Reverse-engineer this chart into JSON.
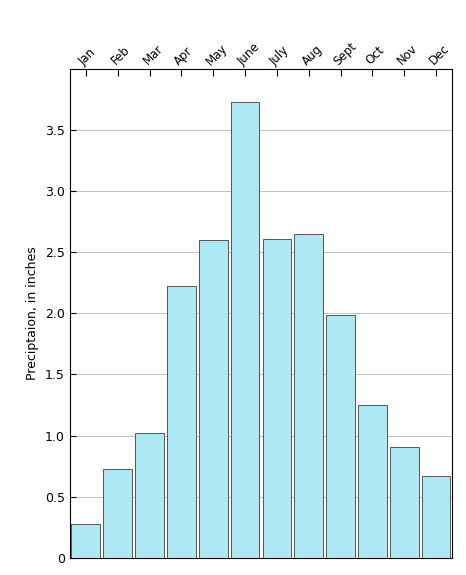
{
  "months": [
    "Jan",
    "Feb",
    "Mar",
    "Apr",
    "May",
    "June",
    "July",
    "Aug",
    "Sept",
    "Oct",
    "Nov",
    "Dec"
  ],
  "values": [
    0.28,
    0.73,
    1.02,
    2.22,
    2.6,
    3.73,
    2.61,
    2.65,
    1.99,
    1.25,
    0.91,
    0.67
  ],
  "bar_color": "#aee8f5",
  "bar_edge_color": "#555555",
  "bar_edge_width": 0.7,
  "ylabel": "Preciptaion, in inches",
  "ylim": [
    0,
    4.0
  ],
  "yticks": [
    0,
    0.5,
    1.0,
    1.5,
    2.0,
    2.5,
    3.0,
    3.5
  ],
  "grid_color": "#aaaaaa",
  "grid_linewidth": 0.5,
  "label_fontsize": 8.5,
  "ylabel_fontsize": 9,
  "tick_fontsize": 9,
  "background_color": "#ffffff"
}
